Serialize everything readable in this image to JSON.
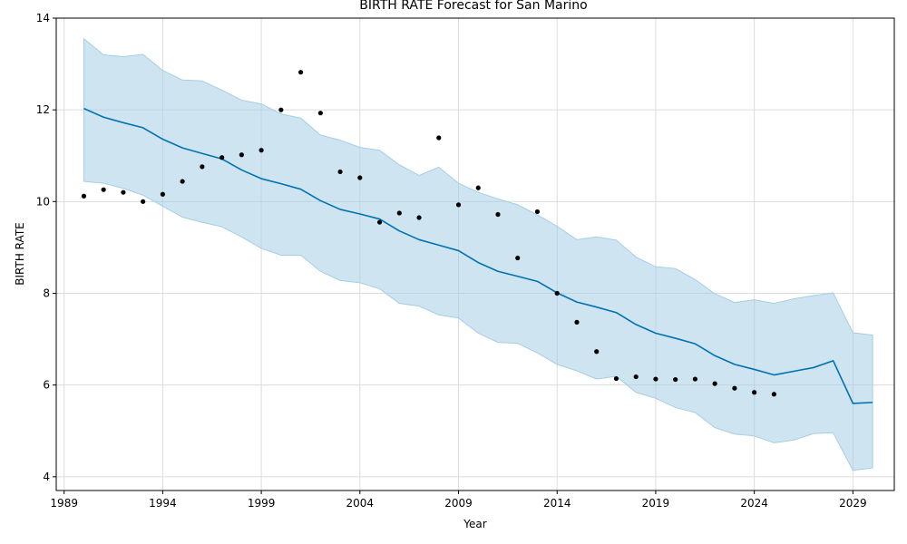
{
  "chart_data": {
    "type": "line",
    "title": "BIRTH RATE Forecast for San Marino",
    "xlabel": "Year",
    "ylabel": "BIRTH RATE",
    "xlim": [
      1988.6,
      2031.1
    ],
    "ylim": [
      3.7,
      14.0
    ],
    "x_ticks": [
      1989,
      1994,
      1999,
      2004,
      2009,
      2014,
      2019,
      2024,
      2029
    ],
    "y_ticks": [
      4,
      6,
      8,
      10,
      12,
      14
    ],
    "grid": true,
    "colors": {
      "forecast": "#0072b2",
      "band": "#a6cde5",
      "actual": "#000000",
      "grid": "#dcdcdc"
    },
    "series": [
      {
        "kind": "forecast",
        "x": [
          1990,
          1991,
          1992,
          1993,
          1994,
          1995,
          1996,
          1997,
          1998,
          1999,
          2000,
          2001,
          2002,
          2003,
          2004,
          2005,
          2006,
          2007,
          2008,
          2009,
          2010,
          2011,
          2012,
          2013,
          2014,
          2015,
          2016,
          2017,
          2018,
          2019,
          2020,
          2021,
          2022,
          2023,
          2024,
          2025,
          2026,
          2027,
          2028,
          2029,
          2030
        ],
        "values": [
          12.03,
          11.84,
          11.72,
          11.61,
          11.36,
          11.17,
          11.05,
          10.93,
          10.69,
          10.5,
          10.39,
          10.27,
          10.02,
          9.83,
          9.73,
          9.62,
          9.36,
          9.17,
          9.05,
          8.93,
          8.67,
          8.48,
          8.37,
          8.26,
          8.01,
          7.81,
          7.7,
          7.58,
          7.32,
          7.13,
          7.02,
          6.9,
          6.64,
          6.45,
          6.34,
          6.22,
          6.3,
          6.38,
          6.53,
          5.6,
          5.62
        ]
      },
      {
        "kind": "uncertainty",
        "x": [
          1990,
          1991,
          1992,
          1993,
          1994,
          1995,
          1996,
          1997,
          1998,
          1999,
          2000,
          2001,
          2002,
          2003,
          2004,
          2005,
          2006,
          2007,
          2008,
          2009,
          2010,
          2011,
          2012,
          2013,
          2014,
          2015,
          2016,
          2017,
          2018,
          2019,
          2020,
          2021,
          2022,
          2023,
          2024,
          2025,
          2026,
          2027,
          2028,
          2029,
          2030
        ],
        "upper": [
          13.55,
          13.2,
          13.16,
          13.21,
          12.86,
          12.65,
          12.63,
          12.43,
          12.21,
          12.13,
          11.91,
          11.82,
          11.45,
          11.34,
          11.18,
          11.12,
          10.8,
          10.57,
          10.75,
          10.4,
          10.2,
          10.06,
          9.93,
          9.71,
          9.46,
          9.17,
          9.23,
          9.16,
          8.79,
          8.58,
          8.54,
          8.3,
          7.99,
          7.8,
          7.86,
          7.78,
          7.88,
          7.95,
          8.01,
          7.14,
          7.09
        ],
        "lower": [
          10.44,
          10.4,
          10.29,
          10.14,
          9.9,
          9.66,
          9.55,
          9.45,
          9.23,
          8.98,
          8.83,
          8.83,
          8.48,
          8.28,
          8.23,
          8.1,
          7.78,
          7.72,
          7.53,
          7.46,
          7.13,
          6.93,
          6.91,
          6.7,
          6.45,
          6.31,
          6.13,
          6.19,
          5.84,
          5.71,
          5.51,
          5.4,
          5.07,
          4.93,
          4.89,
          4.74,
          4.8,
          4.94,
          4.96,
          4.14,
          4.19
        ]
      },
      {
        "kind": "actual",
        "x": [
          1990,
          1991,
          1992,
          1993,
          1994,
          1995,
          1996,
          1997,
          1998,
          1999,
          2000,
          2001,
          2002,
          2003,
          2004,
          2005,
          2006,
          2007,
          2008,
          2009,
          2010,
          2011,
          2012,
          2013,
          2014,
          2015,
          2016,
          2017,
          2018,
          2019,
          2020,
          2021,
          2022,
          2023,
          2024,
          2025
        ],
        "values": [
          10.12,
          10.26,
          10.2,
          10.0,
          10.16,
          10.44,
          10.76,
          10.96,
          11.02,
          11.12,
          12.0,
          12.82,
          11.93,
          10.65,
          10.52,
          9.55,
          9.75,
          9.65,
          11.39,
          9.93,
          10.3,
          9.72,
          8.77,
          9.78,
          8.0,
          7.37,
          6.73,
          6.14,
          6.18,
          6.13,
          6.12,
          6.13,
          6.03,
          5.93,
          5.84,
          5.8
        ]
      }
    ]
  }
}
